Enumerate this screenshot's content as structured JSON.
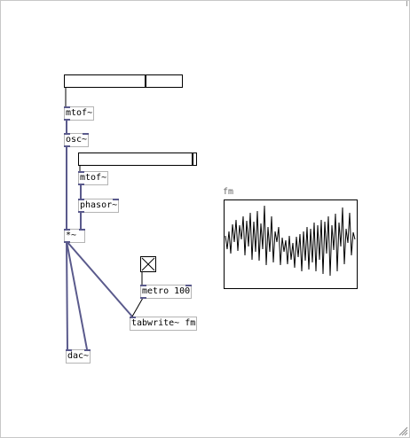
{
  "patch": {
    "objects": {
      "mtof1": "mtof~",
      "osc": "osc~",
      "mtof2": "mtof~",
      "phasor": "phasor~",
      "mul": "*~",
      "metro": "metro 100",
      "tabwrite": "tabwrite~ fm",
      "dac": "dac~"
    },
    "sliders": {
      "slider1_fraction": 0.69,
      "slider2_fraction": 0.98
    },
    "toggle": {
      "checked": true
    },
    "graph": {
      "label": "fm"
    }
  },
  "colors": {
    "wire_signal": "#5a5a8c",
    "wire_control": "#000000",
    "box_border": "#b4b4b4",
    "background": "#ffffff"
  }
}
